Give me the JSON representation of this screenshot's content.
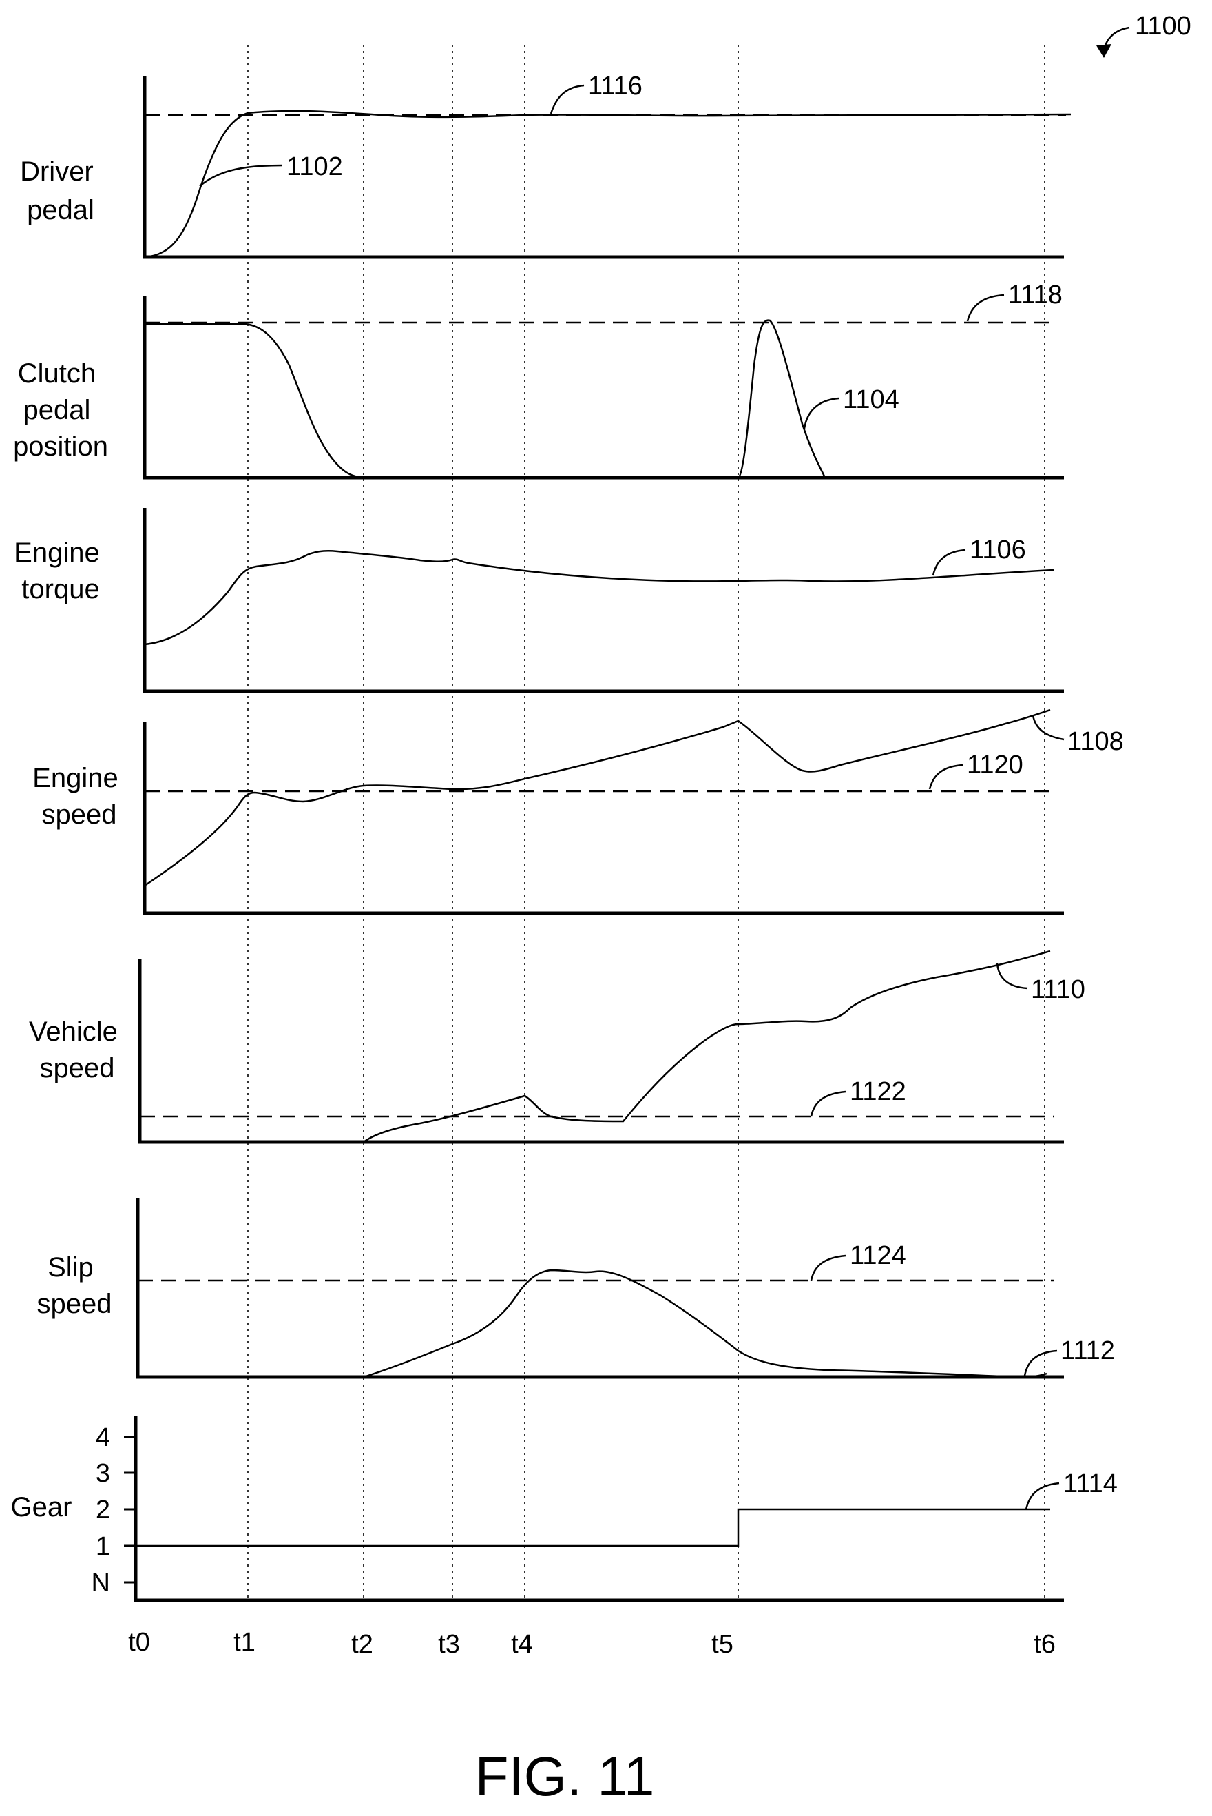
{
  "figure_ref": "1100",
  "fig_title": "FIG. 11",
  "time_labels": [
    "t0",
    "t1",
    "t2",
    "t3",
    "t4",
    "t5",
    "t6"
  ],
  "panels": [
    {
      "id": "driver-pedal",
      "label_lines": [
        "Driver",
        "pedal"
      ],
      "trace_ref": "1102",
      "threshold_ref": "1116"
    },
    {
      "id": "clutch-pedal-position",
      "label_lines": [
        "Clutch",
        "pedal",
        "position"
      ],
      "trace_ref": "1104",
      "threshold_ref": "1118"
    },
    {
      "id": "engine-torque",
      "label_lines": [
        "Engine",
        "torque"
      ],
      "trace_ref": "1106"
    },
    {
      "id": "engine-speed",
      "label_lines": [
        "Engine",
        "speed"
      ],
      "trace_ref": "1108",
      "threshold_ref": "1120"
    },
    {
      "id": "vehicle-speed",
      "label_lines": [
        "Vehicle",
        "speed"
      ],
      "trace_ref": "1110",
      "threshold_ref": "1122"
    },
    {
      "id": "slip-speed",
      "label_lines": [
        "Slip",
        "speed"
      ],
      "trace_ref": "1112",
      "threshold_ref": "1124"
    },
    {
      "id": "gear",
      "label_lines": [
        "Gear"
      ],
      "trace_ref": "1114",
      "ticks": [
        "4",
        "3",
        "2",
        "1",
        "N"
      ]
    }
  ]
}
